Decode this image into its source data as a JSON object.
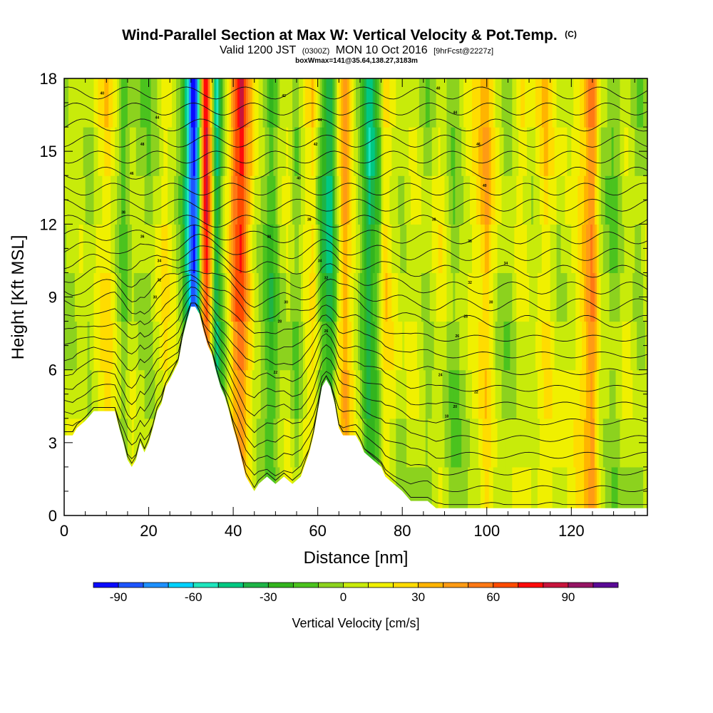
{
  "chart_data": {
    "type": "heatmap",
    "title": "Wind-Parallel Section at Max W: Vertical Velocity & Pot.Temp.",
    "title_mark": "(C)",
    "subtitle": "Valid 1200 JST",
    "subtitle_zulu": "(0300Z)",
    "subtitle_date": "MON 10 Oct 2016",
    "subtitle_fcst": "[9hrFcst@2227z]",
    "box_note": "boxWmax=141@35.64,138.27,3183m",
    "xlabel": "Distance [nm]",
    "ylabel": "Height [Kft MSL]",
    "xlim": [
      0,
      138
    ],
    "ylim": [
      0,
      18
    ],
    "x_ticks": [
      "0",
      "20",
      "40",
      "60",
      "80",
      "100",
      "120"
    ],
    "y_ticks": [
      "0",
      "3",
      "6",
      "9",
      "12",
      "15",
      "18"
    ],
    "colorbar": {
      "title": "Vertical Velocity [cm/s]",
      "tick_labels": [
        "-90",
        "-60",
        "-30",
        "0",
        "30",
        "60",
        "90"
      ],
      "levels": [
        -100,
        -90,
        -80,
        -70,
        -60,
        -50,
        -40,
        -30,
        -20,
        -10,
        0,
        10,
        20,
        30,
        40,
        50,
        60,
        70,
        80,
        90,
        100,
        110
      ],
      "colors": [
        "#0a0aff",
        "#1e55ff",
        "#1e90ff",
        "#00d2ff",
        "#1ee6be",
        "#00c882",
        "#1eb446",
        "#32b41e",
        "#4bc31e",
        "#8cd21e",
        "#c8eb0a",
        "#f0f000",
        "#ffdc00",
        "#ffb400",
        "#ff9b14",
        "#ff7814",
        "#ff4b00",
        "#ff0a0a",
        "#c8143c",
        "#961464",
        "#5a0a96"
      ]
    },
    "terrain_kft": [
      [
        0,
        3.3
      ],
      [
        2,
        3.3
      ],
      [
        3,
        3.6
      ],
      [
        5,
        3.9
      ],
      [
        7,
        4.3
      ],
      [
        12,
        4.3
      ],
      [
        13,
        3.6
      ],
      [
        14,
        3.0
      ],
      [
        15,
        2.3
      ],
      [
        16,
        2.0
      ],
      [
        17,
        2.3
      ],
      [
        18,
        3.0
      ],
      [
        19,
        2.6
      ],
      [
        20,
        3.0
      ],
      [
        21,
        3.6
      ],
      [
        22,
        4.3
      ],
      [
        23,
        4.6
      ],
      [
        24,
        5.3
      ],
      [
        25,
        5.6
      ],
      [
        27,
        6.3
      ],
      [
        28,
        7.3
      ],
      [
        29,
        8.0
      ],
      [
        30,
        8.6
      ],
      [
        31,
        8.6
      ],
      [
        32,
        8.3
      ],
      [
        33,
        7.6
      ],
      [
        34,
        7.0
      ],
      [
        35,
        6.6
      ],
      [
        36,
        5.9
      ],
      [
        37,
        5.3
      ],
      [
        38,
        4.9
      ],
      [
        39,
        4.3
      ],
      [
        40,
        3.6
      ],
      [
        41,
        3.0
      ],
      [
        42,
        2.3
      ],
      [
        43,
        1.6
      ],
      [
        44,
        1.3
      ],
      [
        45,
        1.0
      ],
      [
        46,
        1.3
      ],
      [
        48,
        1.6
      ],
      [
        50,
        1.3
      ],
      [
        52,
        1.6
      ],
      [
        54,
        1.3
      ],
      [
        56,
        1.6
      ],
      [
        58,
        2.6
      ],
      [
        59,
        3.3
      ],
      [
        60,
        4.3
      ],
      [
        61,
        5.3
      ],
      [
        62,
        5.6
      ],
      [
        63,
        5.3
      ],
      [
        64,
        4.6
      ],
      [
        65,
        3.6
      ],
      [
        66,
        3.3
      ],
      [
        69,
        3.3
      ],
      [
        70,
        3.0
      ],
      [
        71,
        2.6
      ],
      [
        73,
        2.3
      ],
      [
        75,
        2.0
      ],
      [
        76,
        1.6
      ],
      [
        78,
        1.3
      ],
      [
        80,
        1.0
      ],
      [
        82,
        0.6
      ],
      [
        86,
        0.6
      ],
      [
        88,
        0.3
      ],
      [
        138,
        0.3
      ]
    ],
    "vertical_velocity_bands": [
      {
        "x": 0,
        "w": 0
      },
      {
        "x": 2,
        "w": 5
      },
      {
        "x": 4,
        "w": 10
      },
      {
        "x": 6,
        "w": 0
      },
      {
        "x": 8,
        "w": 15
      },
      {
        "x": 10,
        "w": 25
      },
      {
        "x": 12,
        "w": 10
      },
      {
        "x": 14,
        "w": -15
      },
      {
        "x": 16,
        "w": 5
      },
      {
        "x": 18,
        "w": 0
      },
      {
        "x": 20,
        "w": -5
      },
      {
        "x": 22,
        "w": 5
      },
      {
        "x": 24,
        "w": 20
      },
      {
        "x": 26,
        "w": 5
      },
      {
        "x": 27.5,
        "w": -10
      },
      {
        "x": 29,
        "w": -45
      },
      {
        "x": 30.5,
        "w": -95
      },
      {
        "x": 31.5,
        "w": -70
      },
      {
        "x": 32.5,
        "w": 25
      },
      {
        "x": 33.5,
        "w": 80
      },
      {
        "x": 34.5,
        "w": 40
      },
      {
        "x": 36,
        "w": -45
      },
      {
        "x": 37.5,
        "w": -10
      },
      {
        "x": 39,
        "w": 20
      },
      {
        "x": 40.5,
        "w": 55
      },
      {
        "x": 42,
        "w": 70
      },
      {
        "x": 43.5,
        "w": 35
      },
      {
        "x": 45,
        "w": 10
      },
      {
        "x": 47,
        "w": -5
      },
      {
        "x": 49,
        "w": -25
      },
      {
        "x": 51,
        "w": 0
      },
      {
        "x": 53,
        "w": 10
      },
      {
        "x": 55,
        "w": -10
      },
      {
        "x": 57,
        "w": 15
      },
      {
        "x": 59,
        "w": 25
      },
      {
        "x": 61,
        "w": -20
      },
      {
        "x": 63,
        "w": -40
      },
      {
        "x": 65,
        "w": 15
      },
      {
        "x": 66.5,
        "w": 45
      },
      {
        "x": 68,
        "w": 20
      },
      {
        "x": 70,
        "w": -5
      },
      {
        "x": 72,
        "w": -40
      },
      {
        "x": 74,
        "w": -20
      },
      {
        "x": 76,
        "w": 25
      },
      {
        "x": 78,
        "w": 10
      },
      {
        "x": 80,
        "w": 0
      },
      {
        "x": 83,
        "w": 10
      },
      {
        "x": 86,
        "w": -5
      },
      {
        "x": 89,
        "w": 15
      },
      {
        "x": 92,
        "w": -10
      },
      {
        "x": 95,
        "w": 5
      },
      {
        "x": 98,
        "w": 20
      },
      {
        "x": 100,
        "w": 35
      },
      {
        "x": 102,
        "w": 10
      },
      {
        "x": 105,
        "w": -5
      },
      {
        "x": 108,
        "w": 15
      },
      {
        "x": 111,
        "w": 5
      },
      {
        "x": 114,
        "w": 25
      },
      {
        "x": 117,
        "w": 5
      },
      {
        "x": 120,
        "w": 10
      },
      {
        "x": 123,
        "w": 30
      },
      {
        "x": 125,
        "w": 55
      },
      {
        "x": 127,
        "w": 5
      },
      {
        "x": 130,
        "w": -10
      },
      {
        "x": 133,
        "w": 10
      },
      {
        "x": 136,
        "w": -5
      },
      {
        "x": 138,
        "w": 5
      }
    ],
    "theta_contour_labels": [
      {
        "text": "40",
        "x": 9,
        "y": 17.4
      },
      {
        "text": "44",
        "x": 22,
        "y": 16.4
      },
      {
        "text": "48",
        "x": 18.5,
        "y": 15.3
      },
      {
        "text": "46",
        "x": 16,
        "y": 14.1
      },
      {
        "text": "38",
        "x": 14,
        "y": 12.5
      },
      {
        "text": "36",
        "x": 18.5,
        "y": 11.5
      },
      {
        "text": "34",
        "x": 22.5,
        "y": 10.5
      },
      {
        "text": "32",
        "x": 22.5,
        "y": 9.7
      },
      {
        "text": "30",
        "x": 21.5,
        "y": 9.0
      },
      {
        "text": "42",
        "x": 52,
        "y": 17.3
      },
      {
        "text": "44",
        "x": 60.5,
        "y": 16.3
      },
      {
        "text": "42",
        "x": 59.5,
        "y": 15.3
      },
      {
        "text": "40",
        "x": 55.5,
        "y": 13.9
      },
      {
        "text": "38",
        "x": 58,
        "y": 12.2
      },
      {
        "text": "36",
        "x": 48.5,
        "y": 11.5
      },
      {
        "text": "34",
        "x": 60.5,
        "y": 10.5
      },
      {
        "text": "32",
        "x": 62,
        "y": 9.8
      },
      {
        "text": "30",
        "x": 52.5,
        "y": 8.8
      },
      {
        "text": "28",
        "x": 51,
        "y": 8.0
      },
      {
        "text": "26",
        "x": 62,
        "y": 7.6
      },
      {
        "text": "22",
        "x": 50,
        "y": 5.9
      },
      {
        "text": "40",
        "x": 88.5,
        "y": 17.6
      },
      {
        "text": "44",
        "x": 92.5,
        "y": 16.6
      },
      {
        "text": "46",
        "x": 98,
        "y": 15.3
      },
      {
        "text": "40",
        "x": 99.5,
        "y": 13.6
      },
      {
        "text": "38",
        "x": 87.5,
        "y": 12.2
      },
      {
        "text": "36",
        "x": 96,
        "y": 11.3
      },
      {
        "text": "34",
        "x": 104.5,
        "y": 10.4
      },
      {
        "text": "32",
        "x": 96,
        "y": 9.6
      },
      {
        "text": "30",
        "x": 101,
        "y": 8.8
      },
      {
        "text": "28",
        "x": 95,
        "y": 8.2
      },
      {
        "text": "26",
        "x": 93,
        "y": 7.4
      },
      {
        "text": "24",
        "x": 89,
        "y": 5.8
      },
      {
        "text": "22",
        "x": 97.5,
        "y": 5.1
      },
      {
        "text": "20",
        "x": 92.5,
        "y": 4.5
      },
      {
        "text": "18",
        "x": 90.5,
        "y": 4.1
      }
    ]
  }
}
